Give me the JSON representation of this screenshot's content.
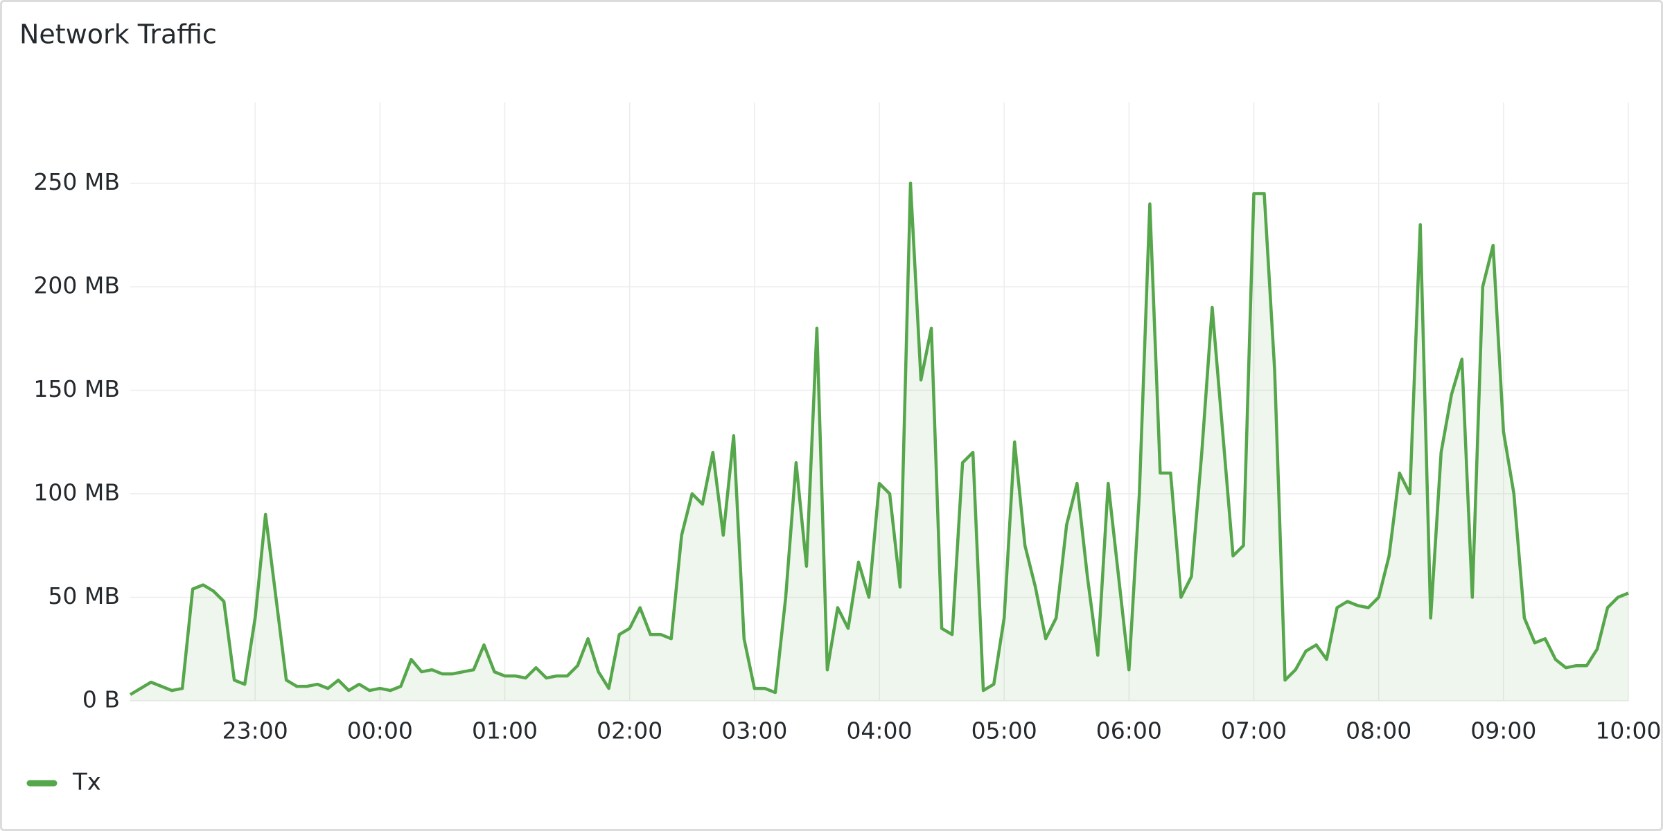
{
  "chart_data": {
    "type": "line",
    "title": "Network Traffic",
    "x": [
      "22:00",
      "22:05",
      "22:10",
      "22:15",
      "22:20",
      "22:25",
      "22:30",
      "22:35",
      "22:40",
      "22:45",
      "22:50",
      "22:55",
      "23:00",
      "23:05",
      "23:10",
      "23:15",
      "23:20",
      "23:25",
      "23:30",
      "23:35",
      "23:40",
      "23:45",
      "23:50",
      "23:55",
      "00:00",
      "00:05",
      "00:10",
      "00:15",
      "00:20",
      "00:25",
      "00:30",
      "00:35",
      "00:40",
      "00:45",
      "00:50",
      "00:55",
      "01:00",
      "01:05",
      "01:10",
      "01:15",
      "01:20",
      "01:25",
      "01:30",
      "01:35",
      "01:40",
      "01:45",
      "01:50",
      "01:55",
      "02:00",
      "02:05",
      "02:10",
      "02:15",
      "02:20",
      "02:25",
      "02:30",
      "02:35",
      "02:40",
      "02:45",
      "02:50",
      "02:55",
      "03:00",
      "03:05",
      "03:10",
      "03:15",
      "03:20",
      "03:25",
      "03:30",
      "03:35",
      "03:40",
      "03:45",
      "03:50",
      "03:55",
      "04:00",
      "04:05",
      "04:10",
      "04:15",
      "04:20",
      "04:25",
      "04:30",
      "04:35",
      "04:40",
      "04:45",
      "04:50",
      "04:55",
      "05:00",
      "05:05",
      "05:10",
      "05:15",
      "05:20",
      "05:25",
      "05:30",
      "05:35",
      "05:40",
      "05:45",
      "05:50",
      "05:55",
      "06:00",
      "06:05",
      "06:10",
      "06:15",
      "06:20",
      "06:25",
      "06:30",
      "06:35",
      "06:40",
      "06:45",
      "06:50",
      "06:55",
      "07:00",
      "07:05",
      "07:10",
      "07:15",
      "07:20",
      "07:25",
      "07:30",
      "07:35",
      "07:40",
      "07:45",
      "07:50",
      "07:55",
      "08:00",
      "08:05",
      "08:10",
      "08:15",
      "08:20",
      "08:25",
      "08:30",
      "08:35",
      "08:40",
      "08:45",
      "08:50",
      "08:55",
      "09:00",
      "09:05",
      "09:10",
      "09:15",
      "09:20",
      "09:25",
      "09:30",
      "09:35",
      "09:40",
      "09:45",
      "09:50",
      "09:55",
      "10:00"
    ],
    "series": [
      {
        "name": "Tx",
        "color": "#56a64b",
        "values": [
          3,
          6,
          9,
          7,
          5,
          6,
          54,
          56,
          53,
          48,
          10,
          8,
          40,
          90,
          50,
          10,
          7,
          7,
          8,
          6,
          10,
          5,
          8,
          5,
          6,
          5,
          7,
          20,
          14,
          15,
          13,
          13,
          14,
          15,
          27,
          14,
          12,
          12,
          11,
          16,
          11,
          12,
          12,
          17,
          30,
          14,
          6,
          32,
          35,
          45,
          32,
          32,
          30,
          80,
          100,
          95,
          120,
          80,
          128,
          30,
          6,
          6,
          4,
          50,
          115,
          65,
          180,
          15,
          45,
          35,
          67,
          50,
          105,
          100,
          55,
          250,
          155,
          180,
          35,
          32,
          115,
          120,
          5,
          8,
          40,
          125,
          75,
          55,
          30,
          40,
          85,
          105,
          60,
          22,
          105,
          60,
          15,
          100,
          240,
          110,
          110,
          50,
          60,
          120,
          190,
          130,
          70,
          75,
          245,
          245,
          160,
          10,
          15,
          24,
          27,
          20,
          45,
          48,
          46,
          45,
          50,
          70,
          110,
          100,
          230,
          40,
          120,
          148,
          165,
          50,
          200,
          220,
          130,
          100,
          40,
          28,
          30,
          20,
          16,
          17,
          17,
          25,
          45,
          50,
          52
        ]
      }
    ],
    "xlim": [
      "22:00",
      "10:00"
    ],
    "xticks": [
      "23:00",
      "00:00",
      "01:00",
      "02:00",
      "03:00",
      "04:00",
      "05:00",
      "06:00",
      "07:00",
      "08:00",
      "09:00",
      "10:00"
    ],
    "ylim": [
      0,
      289
    ],
    "yticks": [
      {
        "value": 0,
        "label": "0 B"
      },
      {
        "value": 50,
        "label": "50 MB"
      },
      {
        "value": 100,
        "label": "100 MB"
      },
      {
        "value": 150,
        "label": "150 MB"
      },
      {
        "value": 200,
        "label": "200 MB"
      },
      {
        "value": 250,
        "label": "250 MB"
      }
    ],
    "grid": true
  }
}
